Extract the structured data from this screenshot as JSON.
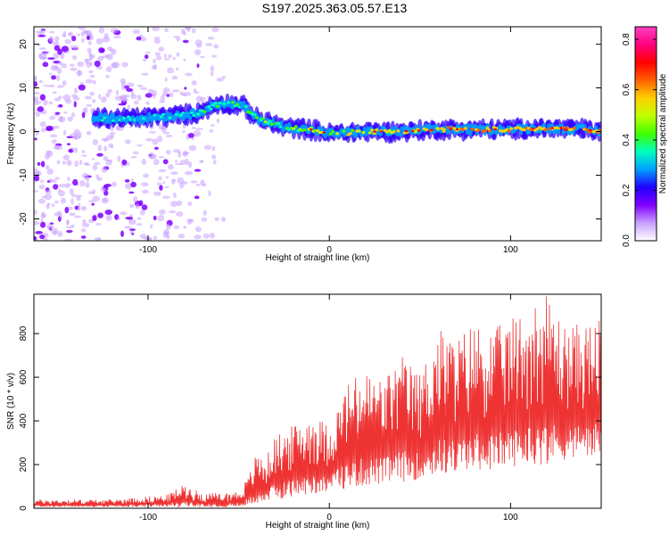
{
  "figure": {
    "title": "S197.2025.363.05.57.E13"
  },
  "chart_data": [
    {
      "type": "heatmap",
      "description_of_content": "spectrogram",
      "xlabel": "Height of straight line (km)",
      "ylabel": "Frequency (Hz)",
      "xlim": [
        -163,
        150
      ],
      "ylim": [
        -25,
        24
      ],
      "xticks": [
        -100,
        0,
        100
      ],
      "xtick_labels": [
        "-100",
        "0",
        "100"
      ],
      "yticks": [
        -20,
        -10,
        0,
        10,
        20
      ],
      "ytick_labels": [
        "-20",
        "-10",
        "0",
        "10",
        "20"
      ],
      "colorbar": {
        "label": "Normalized spectral amplitude",
        "range": [
          0.0,
          0.85
        ],
        "ticks": [
          0.0,
          0.2,
          0.4,
          0.6,
          0.8
        ],
        "tick_labels": [
          "0.0",
          "0.2",
          "0.4",
          "0.6",
          "0.8"
        ],
        "colormap": [
          "#ffffff",
          "#c8a0ff",
          "#8000ff",
          "#2000ff",
          "#00a0ff",
          "#00ffc0",
          "#40ff00",
          "#c0ff00",
          "#ffd000",
          "#ff6000",
          "#ff0000",
          "#ff0080",
          "#ff40c0"
        ]
      },
      "signal_track": [
        {
          "x": -130,
          "f": 3,
          "amp": 0.3
        },
        {
          "x": -110,
          "f": 3,
          "amp": 0.32
        },
        {
          "x": -90,
          "f": 3.5,
          "amp": 0.35
        },
        {
          "x": -75,
          "f": 4,
          "amp": 0.38
        },
        {
          "x": -60,
          "f": 6.5,
          "amp": 0.42
        },
        {
          "x": -48,
          "f": 6,
          "amp": 0.4
        },
        {
          "x": -40,
          "f": 3,
          "amp": 0.45
        },
        {
          "x": -25,
          "f": 1,
          "amp": 0.5
        },
        {
          "x": -10,
          "f": 0.5,
          "amp": 0.55
        },
        {
          "x": 0,
          "f": -0.5,
          "amp": 0.58
        },
        {
          "x": 20,
          "f": 0,
          "amp": 0.62
        },
        {
          "x": 40,
          "f": 0,
          "amp": 0.65
        },
        {
          "x": 60,
          "f": 0.5,
          "amp": 0.7
        },
        {
          "x": 80,
          "f": 0.5,
          "amp": 0.75
        },
        {
          "x": 100,
          "f": 0.5,
          "amp": 0.72
        },
        {
          "x": 120,
          "f": 0.8,
          "amp": 0.78
        },
        {
          "x": 140,
          "f": 0.5,
          "amp": 0.8
        },
        {
          "x": 150,
          "f": 0,
          "amp": 0.75
        }
      ],
      "noise_region_xlim": [
        -163,
        -58
      ]
    },
    {
      "type": "line",
      "xlabel": "Height of straight line (km)",
      "ylabel": "SNR (10 * v/v)",
      "xlim": [
        -163,
        150
      ],
      "ylim": [
        0,
        980
      ],
      "xticks": [
        -100,
        0,
        100
      ],
      "xtick_labels": [
        "-100",
        "0",
        "100"
      ],
      "yticks": [
        0,
        200,
        400,
        600,
        800
      ],
      "ytick_labels": [
        "0",
        "200",
        "400",
        "600",
        "800"
      ],
      "color": "#ee3333",
      "envelope": {
        "x": [
          -163,
          -120,
          -100,
          -90,
          -80,
          -70,
          -60,
          -50,
          -45,
          -40,
          -35,
          -30,
          -20,
          -10,
          0,
          10,
          20,
          30,
          40,
          50,
          60,
          70,
          80,
          90,
          100,
          110,
          120,
          130,
          140,
          150
        ],
        "low": [
          5,
          5,
          5,
          5,
          5,
          5,
          5,
          5,
          10,
          20,
          30,
          40,
          50,
          60,
          80,
          90,
          100,
          110,
          120,
          130,
          150,
          160,
          170,
          180,
          190,
          200,
          200,
          220,
          230,
          240
        ],
        "high": [
          40,
          40,
          55,
          60,
          110,
          70,
          70,
          80,
          140,
          260,
          230,
          330,
          380,
          440,
          380,
          580,
          630,
          600,
          700,
          620,
          830,
          780,
          860,
          820,
          870,
          930,
          980,
          840,
          850,
          860
        ]
      }
    }
  ]
}
